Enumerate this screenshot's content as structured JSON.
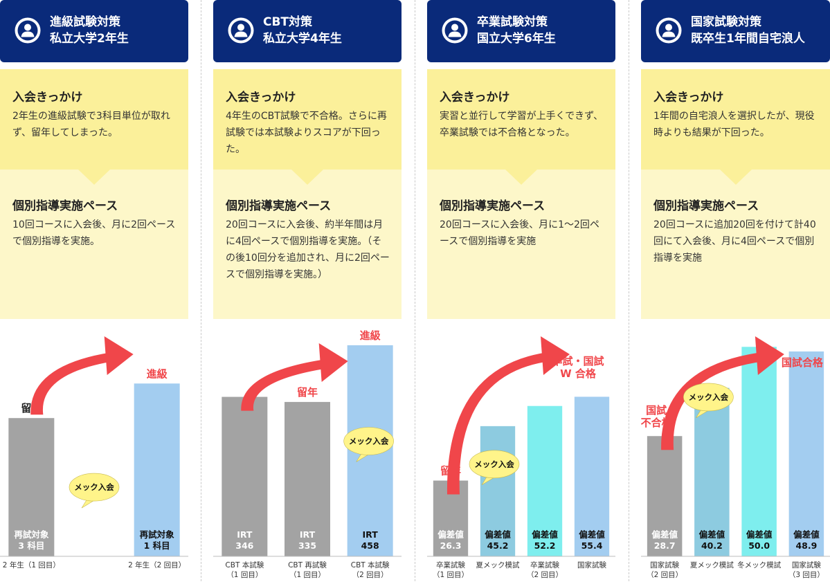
{
  "colors": {
    "navy": "#0a2a7a",
    "yellow": "#fbf09a",
    "lightyellow": "#fdf7c9",
    "gray": "#a3a3a3",
    "blue": "#a3cdf0",
    "sky": "#8dcbe0",
    "cyan": "#7eeeee",
    "red": "#f0464a",
    "bubble": "#fff48a"
  },
  "columns": [
    {
      "header": {
        "line1": "進級試験対策",
        "line2": "私立大学2年生"
      },
      "trigger": {
        "title": "入会きっかけ",
        "body": "2年生の進級試験で3科目単位が取れず、留年してしまった。"
      },
      "pace": {
        "title": "個別指導実施ペース",
        "body": "10回コースに入会後、月に2回ペースで個別指導を実施。"
      },
      "chart_data": {
        "type": "bar",
        "ylim": [
          0,
          100
        ],
        "bars": [
          {
            "value": 60,
            "color": "gray",
            "label1": "再試対象",
            "label2": "3 科目",
            "above": "留年",
            "above_color": "#222",
            "cat1": "2 年生（1 回目）",
            "cat2": ""
          },
          {
            "value": 0,
            "color": "none",
            "label1": "",
            "label2": "",
            "above": "",
            "above_color": "",
            "cat1": "",
            "cat2": ""
          },
          {
            "value": 75,
            "color": "blue",
            "label1": "再試対象",
            "label2": "1 科目",
            "above": "進級",
            "above_color": "#f0464a",
            "cat1": "2 年生（2 回目）",
            "cat2": ""
          }
        ],
        "bubble": {
          "text": "メック入会",
          "bar": 1,
          "level": 30
        }
      }
    },
    {
      "header": {
        "line1": "CBT対策",
        "line2": "私立大学4年生"
      },
      "trigger": {
        "title": "入会きっかけ",
        "body": "4年生のCBT試験で不合格。さらに再試験では本試験よりスコアが下回った。"
      },
      "pace": {
        "title": "個別指導実施ペース",
        "body": "20回コースに入会後、約半年間は月に4回ペースで個別指導を実施。（その後10回分を追加され、月に2回ペースで個別指導を実施。）"
      },
      "chart_data": {
        "type": "bar",
        "ylim": [
          0,
          500
        ],
        "bars": [
          {
            "value": 346,
            "color": "gray",
            "label1": "IRT",
            "label2": "346",
            "above": "",
            "above_color": "",
            "cat1": "CBT 本試験",
            "cat2": "（1 回目）"
          },
          {
            "value": 335,
            "color": "gray",
            "label1": "IRT",
            "label2": "335",
            "above": "留年",
            "above_color": "#f0464a",
            "cat1": "CBT 再試験",
            "cat2": "（1 回目）"
          },
          {
            "value": 458,
            "color": "blue",
            "label1": "IRT",
            "label2": "458",
            "above": "進級",
            "above_color": "#f0464a",
            "cat1": "CBT 本試験",
            "cat2": "（2 回目）"
          }
        ],
        "bubble": {
          "text": "メック入会",
          "bar": 2,
          "level": 250
        }
      }
    },
    {
      "header": {
        "line1": "卒業試験対策",
        "line2": "国立大学6年生"
      },
      "trigger": {
        "title": "入会きっかけ",
        "body": "実習と並行して学習が上手くできず、卒業試験では不合格となった。"
      },
      "pace": {
        "title": "個別指導実施ペース",
        "body": "20回コースに入会後、月に1～2回ペースで個別指導を実施"
      },
      "chart_data": {
        "type": "bar",
        "ylim": [
          0,
          80
        ],
        "bars": [
          {
            "value": 26.3,
            "color": "gray",
            "label1": "偏差値",
            "label2": "26.3",
            "above": "留年",
            "above_color": "#f0464a",
            "cat1": "卒業試験",
            "cat2": "（1 回目）"
          },
          {
            "value": 45.2,
            "color": "sky",
            "label1": "偏差値",
            "label2": "45.2",
            "above": "",
            "above_color": "",
            "cat1": "夏メック模試",
            "cat2": ""
          },
          {
            "value": 52.2,
            "color": "cyan",
            "label1": "偏差値",
            "label2": "52.2",
            "above": "",
            "above_color": "",
            "cat1": "卒業試験",
            "cat2": "（2 回目）"
          },
          {
            "value": 55.4,
            "color": "blue",
            "label1": "偏差値",
            "label2": "55.4",
            "above": "",
            "above_color": "",
            "cat1": "国家試験",
            "cat2": ""
          }
        ],
        "annotation": {
          "line1": "卒試・国試",
          "line2": "W 合格"
        },
        "bubble": {
          "text": "メック入会",
          "bar": 1,
          "level": 32
        }
      }
    },
    {
      "header": {
        "line1": "国家試験対策",
        "line2": "既卒生1年間自宅浪人"
      },
      "trigger": {
        "title": "入会きっかけ",
        "body": "1年間の自宅浪人を選択したが、現役時よりも結果が下回った。"
      },
      "pace": {
        "title": "個別指導実施ペース",
        "body": "20回コースに追加20回を付けて計40回にて入会後、月に4回ペースで個別指導を実施"
      },
      "chart_data": {
        "type": "bar",
        "ylim": [
          0,
          55
        ],
        "bars": [
          {
            "value": 28.7,
            "color": "gray",
            "label1": "偏差値",
            "label2": "28.7",
            "above": "",
            "above_color": "",
            "cat1": "国家試験",
            "cat2": "（2 回目）"
          },
          {
            "value": 40.2,
            "color": "sky",
            "label1": "偏差値",
            "label2": "40.2",
            "above": "",
            "above_color": "",
            "cat1": "夏メック模試",
            "cat2": ""
          },
          {
            "value": 50.0,
            "color": "cyan",
            "label1": "偏差値",
            "label2": "50.0",
            "above": "",
            "above_color": "",
            "cat1": "冬メック模試",
            "cat2": ""
          },
          {
            "value": 48.9,
            "color": "blue",
            "label1": "偏差値",
            "label2": "48.9",
            "above": "",
            "above_color": "",
            "cat1": "国家試験",
            "cat2": "（3 回目）"
          }
        ],
        "annotation": {
          "line1": "国試合格",
          "line2": ""
        },
        "fail_label": {
          "line1": "国試",
          "line2": "不合格"
        },
        "bubble": {
          "text": "メック入会",
          "bar": 1,
          "level": 38
        }
      }
    }
  ]
}
